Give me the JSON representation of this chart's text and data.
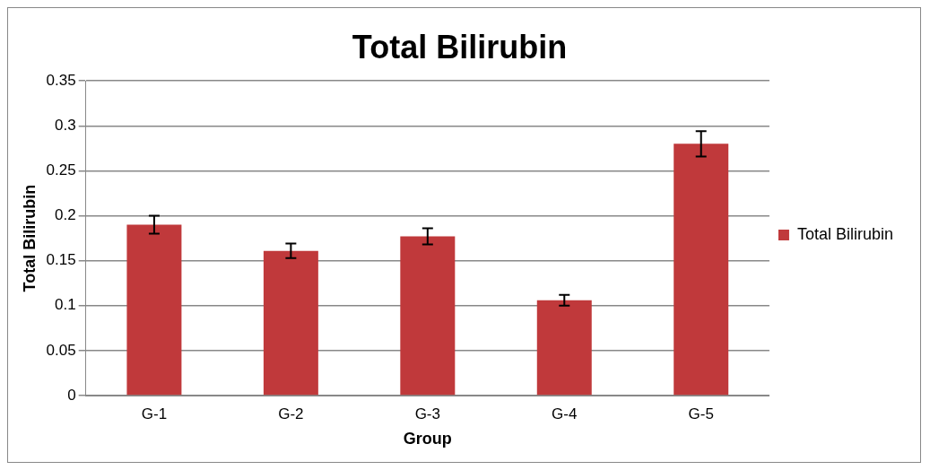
{
  "chart_data": {
    "type": "bar",
    "title": "Total Bilirubin",
    "xlabel": "Group",
    "ylabel": "Total Bilirubin",
    "categories": [
      "G-1",
      "G-2",
      "G-3",
      "G-4",
      "G-5"
    ],
    "series": [
      {
        "name": "Total Bilirubin",
        "color": "#c0393b",
        "values": [
          0.19,
          0.161,
          0.177,
          0.106,
          0.28
        ],
        "errors": [
          0.01,
          0.008,
          0.009,
          0.006,
          0.014
        ]
      }
    ],
    "ylim": [
      0,
      0.35
    ],
    "yticks": [
      0,
      0.05,
      0.1,
      0.15,
      0.2,
      0.25,
      0.3,
      0.35
    ],
    "grid": "y",
    "legend": "right"
  }
}
